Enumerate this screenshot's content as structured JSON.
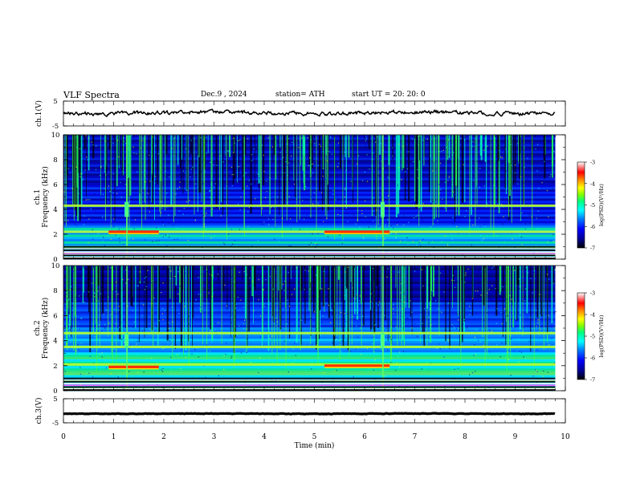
{
  "header": {
    "title": "VLF  Spectra",
    "date": "Dec.9  , 2024",
    "station": "station= ATH",
    "start_ut": "start  UT  =    20: 20: 0"
  },
  "chart_data": [
    {
      "type": "line",
      "panel": "ch1-waveform",
      "ylabel": "ch.1(V)",
      "ylim": [
        -5,
        5
      ],
      "yticks": [
        "5",
        "-5"
      ],
      "xlim": [
        0,
        10
      ],
      "description_value_level": 0.3,
      "data_extent_min": [
        0,
        9.8
      ]
    },
    {
      "type": "heatmap",
      "panel": "ch1-spectrogram",
      "ylabel": "ch.1\nFrequency  (kHz)",
      "ylim": [
        0,
        10
      ],
      "yticks": [
        "0",
        "2",
        "4",
        "6",
        "8",
        "10"
      ],
      "xlim": [
        0,
        10
      ],
      "data_extent_min": [
        0,
        9.8
      ],
      "features": [
        {
          "kind": "band",
          "freq_khz": 2.2
        },
        {
          "kind": "band",
          "freq_khz": 4.3
        },
        {
          "kind": "intense-segment",
          "freq_khz": 2.2,
          "t_min": [
            0.9,
            1.9
          ]
        },
        {
          "kind": "intense-segment",
          "freq_khz": 2.2,
          "t_min": [
            5.2,
            6.5
          ]
        },
        {
          "kind": "burst",
          "t_min": 1.25
        },
        {
          "kind": "burst",
          "t_min": 6.35
        }
      ],
      "colorbar": {
        "label": "log(PSD)(V²/Hz)",
        "range": [
          -7,
          -3
        ],
        "ticks": [
          "-3",
          "-4",
          "-5",
          "-6",
          "-7"
        ],
        "colormap": [
          "#000080",
          "#0000ff",
          "#0080ff",
          "#00ffff",
          "#00ff80",
          "#80ff00",
          "#ffff00",
          "#ff8000",
          "#ff0000",
          "#ffffff"
        ]
      }
    },
    {
      "type": "heatmap",
      "panel": "ch2-spectrogram",
      "ylabel": "ch.2\nFrequency  (kHz)",
      "ylim": [
        0,
        10
      ],
      "yticks": [
        "0",
        "2",
        "4",
        "6",
        "8",
        "10"
      ],
      "xlim": [
        0,
        10
      ],
      "data_extent_min": [
        0,
        9.8
      ],
      "features": [
        {
          "kind": "band",
          "freq_khz": 2.1
        },
        {
          "kind": "band",
          "freq_khz": 3.5
        },
        {
          "kind": "band",
          "freq_khz": 4.6
        },
        {
          "kind": "intense-segment",
          "freq_khz": 1.9,
          "t_min": [
            0.9,
            1.9
          ]
        },
        {
          "kind": "intense-segment",
          "freq_khz": 2.0,
          "t_min": [
            5.2,
            6.5
          ]
        },
        {
          "kind": "burst",
          "t_min": 1.25
        },
        {
          "kind": "burst",
          "t_min": 6.35
        }
      ],
      "colorbar": {
        "label": "log(PSD)(V²/Hz)",
        "range": [
          -7,
          -3
        ],
        "ticks": [
          "-3",
          "-4",
          "-5",
          "-6",
          "-7"
        ],
        "colormap": [
          "#000080",
          "#0000ff",
          "#0080ff",
          "#00ffff",
          "#00ff80",
          "#80ff00",
          "#ffff00",
          "#ff8000",
          "#ff0000",
          "#ffffff"
        ]
      }
    },
    {
      "type": "line",
      "panel": "ch3-waveform",
      "ylabel": "ch.3(V)",
      "ylim": [
        -5,
        5
      ],
      "yticks": [
        "5",
        "-5"
      ],
      "xlim": [
        0,
        10
      ],
      "data_extent_min": [
        0,
        9.8
      ],
      "description_value_level": -1.2
    }
  ],
  "xaxis": {
    "label": "Time  (min)",
    "ticks": [
      "0",
      "1",
      "2",
      "3",
      "4",
      "5",
      "6",
      "7",
      "8",
      "9",
      "10"
    ]
  }
}
